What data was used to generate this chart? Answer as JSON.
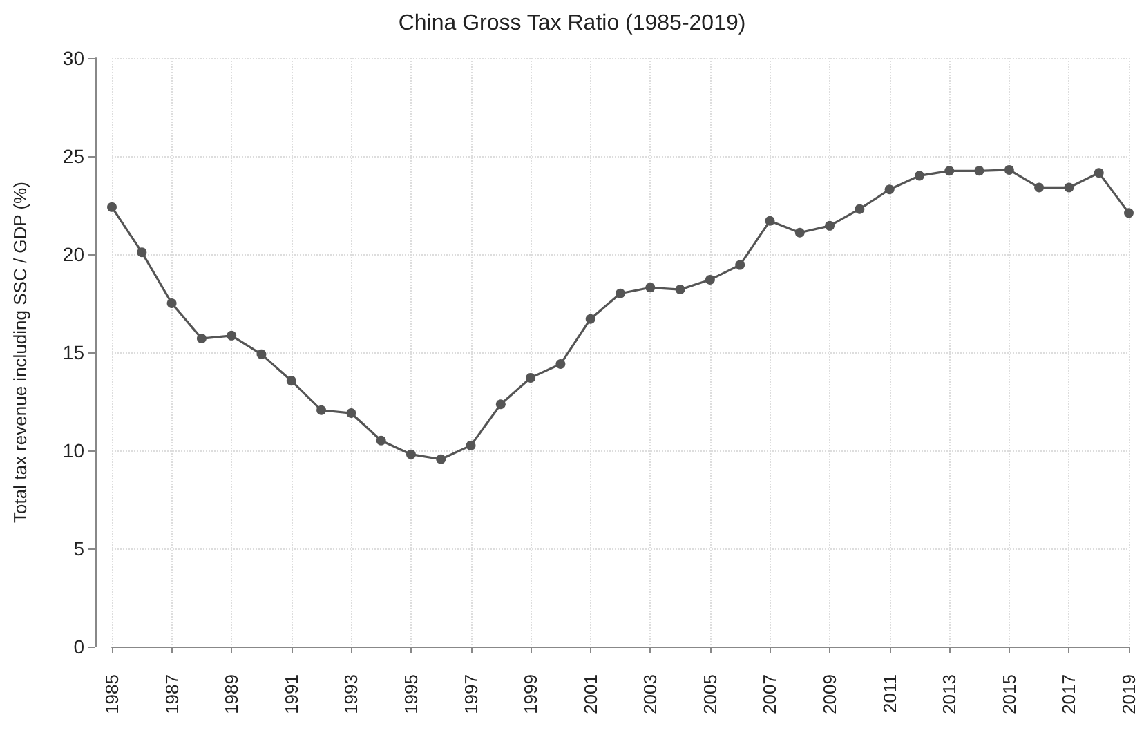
{
  "chart_data": {
    "type": "line",
    "title": "China Gross Tax Ratio (1985-2019)",
    "ylabel": "Total tax revenue including SSC / GDP (%)",
    "x": [
      1985,
      1986,
      1987,
      1988,
      1989,
      1990,
      1991,
      1992,
      1993,
      1994,
      1995,
      1996,
      1997,
      1998,
      1999,
      2000,
      2001,
      2002,
      2003,
      2004,
      2005,
      2006,
      2007,
      2008,
      2009,
      2010,
      2011,
      2012,
      2013,
      2014,
      2015,
      2016,
      2017,
      2018,
      2019
    ],
    "series": [
      {
        "color": "#555555",
        "values": [
          22.4,
          20.1,
          17.5,
          15.7,
          15.85,
          14.9,
          13.55,
          12.05,
          11.9,
          10.5,
          9.8,
          9.55,
          10.25,
          12.35,
          13.7,
          14.4,
          16.7,
          18.0,
          18.3,
          18.2,
          18.7,
          19.45,
          21.7,
          21.1,
          21.45,
          22.3,
          23.3,
          24.0,
          24.25,
          24.25,
          24.3,
          23.4,
          23.4,
          24.15,
          22.1
        ]
      }
    ],
    "xlim": [
      1985,
      2019
    ],
    "xticks": [
      1985,
      1987,
      1989,
      1991,
      1993,
      1995,
      1997,
      1999,
      2001,
      2003,
      2005,
      2007,
      2009,
      2011,
      2013,
      2015,
      2017,
      2019
    ],
    "ylim": [
      0,
      30
    ],
    "yticks": [
      0,
      5,
      10,
      15,
      20,
      25,
      30
    ],
    "grid": true,
    "marker": "circle",
    "line_style": "solid"
  }
}
